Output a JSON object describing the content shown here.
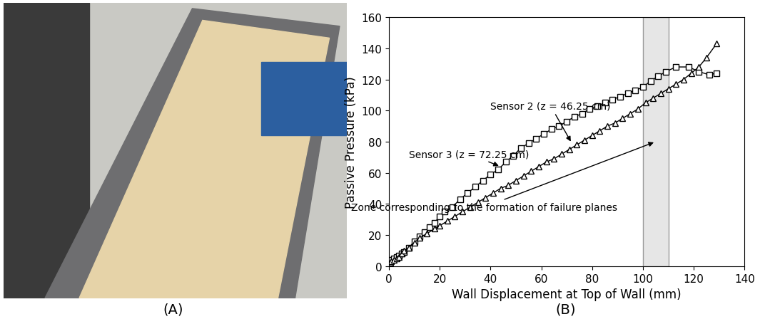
{
  "chart_data": {
    "type": "line",
    "x_label": "Wall Displacement at Top of Wall (mm)",
    "y_label": "Passive Pressure (kPa)",
    "xlim": [
      0,
      140
    ],
    "ylim": [
      0,
      160
    ],
    "xticks": [
      0,
      20,
      40,
      60,
      80,
      100,
      120,
      140
    ],
    "yticks": [
      0,
      20,
      40,
      60,
      80,
      100,
      120,
      140,
      160
    ],
    "grid": false,
    "zone": [
      100,
      110
    ],
    "annotations": [
      "Sensor 2 (z = 46.25 cm)",
      "Sensor 3 (z = 72.25 cm)",
      "Zone corresponding to the formation of failure planes"
    ],
    "series": [
      {
        "name": "Sensor 2",
        "color": "#000000",
        "marker": "square",
        "line_style": "solid",
        "x": [
          0,
          0.5,
          1,
          2,
          3,
          4,
          5,
          6,
          8,
          10,
          12,
          14,
          16,
          18,
          20,
          22,
          25,
          28,
          31,
          34,
          37,
          40,
          43,
          46,
          49,
          52,
          55,
          58,
          61,
          64,
          67,
          70,
          73,
          76,
          79,
          82,
          85,
          88,
          91,
          94,
          97,
          100,
          103,
          106,
          109,
          113,
          118,
          122,
          126,
          129
        ],
        "values": [
          2,
          3,
          4,
          5,
          6,
          7,
          8,
          9,
          12,
          16,
          19,
          22,
          25,
          28,
          32,
          35,
          38,
          43,
          47,
          51,
          55,
          59,
          62,
          67,
          71,
          76,
          79,
          82,
          85,
          88,
          90,
          93,
          96,
          98,
          101,
          103,
          105,
          107,
          109,
          111,
          113,
          115,
          119,
          122,
          125,
          128,
          128,
          125,
          123,
          124
        ]
      },
      {
        "name": "Sensor 3",
        "color": "#000000",
        "marker": "triangle",
        "line_style": "solid",
        "x": [
          0,
          0.5,
          1,
          2,
          3,
          4,
          5,
          6,
          8,
          10,
          12,
          15,
          18,
          20,
          23,
          26,
          29,
          32,
          35,
          38,
          41,
          44,
          47,
          50,
          53,
          56,
          59,
          62,
          65,
          68,
          71,
          74,
          77,
          80,
          83,
          86,
          89,
          92,
          95,
          98,
          101,
          104,
          107,
          110,
          113,
          116,
          119,
          122,
          125,
          129
        ],
        "values": [
          1,
          2,
          3,
          4,
          5,
          6,
          8,
          10,
          12,
          15,
          18,
          21,
          24,
          26,
          29,
          32,
          35,
          38,
          41,
          44,
          47,
          50,
          52,
          55,
          58,
          61,
          64,
          67,
          69,
          72,
          75,
          78,
          81,
          84,
          87,
          90,
          92,
          95,
          98,
          101,
          105,
          108,
          111,
          114,
          117,
          120,
          124,
          128,
          134,
          143
        ]
      }
    ]
  },
  "panel_labels": [
    "(A)",
    "(B)"
  ]
}
